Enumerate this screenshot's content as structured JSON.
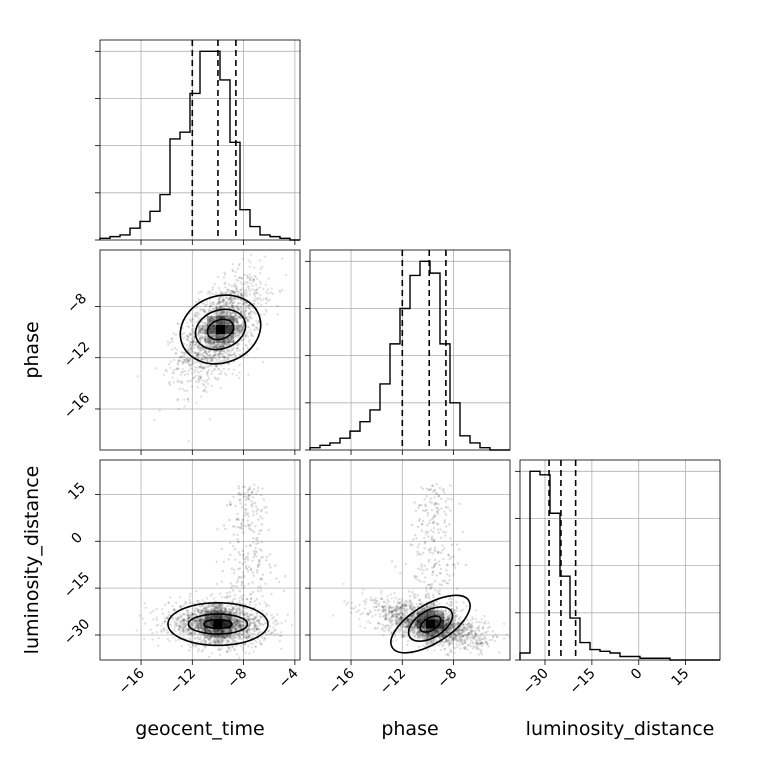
{
  "chart_data": {
    "type": "corner",
    "parameters": [
      {
        "name": "geocent_time",
        "range": [
          -19.2,
          -3.6
        ],
        "ticks": [
          -16,
          -12,
          -8,
          -4
        ],
        "tick_labels": [
          "−16",
          "−12",
          "−8",
          "−4"
        ],
        "quantiles": [
          -12.0,
          -10.0,
          -8.6
        ]
      },
      {
        "name": "phase",
        "range": [
          -19.2,
          -3.6
        ],
        "ticks": [
          -16,
          -12,
          -8
        ],
        "tick_labels": [
          "−16",
          "−12",
          "−8"
        ],
        "quantiles": [
          -12.0,
          -9.9,
          -8.6
        ]
      },
      {
        "name": "luminosity_distance",
        "range": [
          -38,
          26
        ],
        "ticks": [
          -30,
          -15,
          0,
          15
        ],
        "tick_labels": [
          "−30",
          "−15",
          "0",
          "15"
        ],
        "quantiles": [
          -28.7,
          -24.9,
          -20.2
        ]
      }
    ],
    "histograms": [
      {
        "param": "geocent_time",
        "bins": 20,
        "counts": [
          1,
          2,
          3,
          7,
          11,
          17,
          27,
          60,
          64,
          87,
          112,
          112,
          95,
          58,
          18,
          8,
          3,
          2,
          1,
          0
        ]
      },
      {
        "param": "phase",
        "bins": 20,
        "counts": [
          1,
          2,
          3,
          5,
          8,
          12,
          17,
          28,
          45,
          60,
          74,
          80,
          75,
          45,
          20,
          6,
          3,
          1,
          0,
          0
        ]
      },
      {
        "param": "luminosity_distance",
        "bins": 20,
        "counts": [
          4,
          108,
          106,
          84,
          48,
          24,
          10,
          6,
          5,
          4,
          2,
          2,
          1,
          1,
          1,
          0,
          0,
          0,
          0,
          0
        ]
      }
    ],
    "pairs": [
      {
        "x": "geocent_time",
        "y": "phase",
        "peak": [
          -9.8,
          -9.8
        ]
      },
      {
        "x": "geocent_time",
        "y": "luminosity_distance",
        "peak": [
          -10.0,
          -26.5
        ]
      },
      {
        "x": "phase",
        "y": "luminosity_distance",
        "peak": [
          -9.8,
          -26.5
        ]
      }
    ],
    "axis_labels": {
      "row_1": "phase",
      "row_2": "luminosity_distance",
      "col_0": "geocent_time",
      "col_1": "phase",
      "col_2": "luminosity_distance"
    },
    "grid": true,
    "colors": {
      "hist": "#000000",
      "quantile": "#000000",
      "grid": "#b0b0b0",
      "points": "#000000"
    }
  }
}
